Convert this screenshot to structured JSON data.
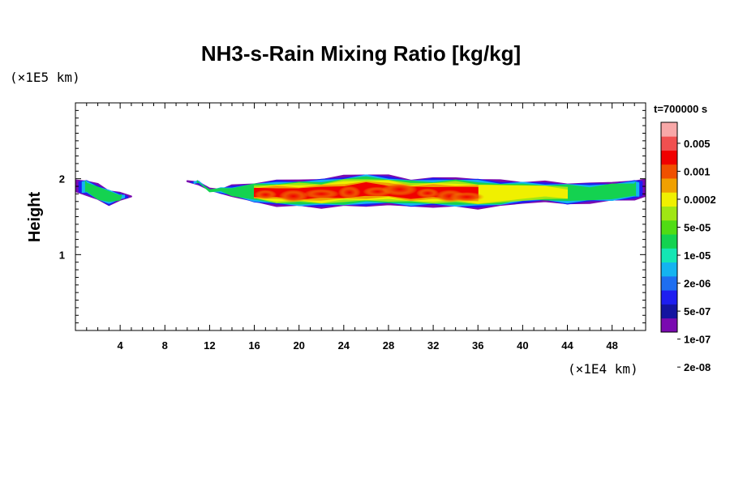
{
  "chart_data": {
    "type": "heatmap",
    "title": "NH3-s-Rain Mixing Ratio [kg/kg]",
    "ylabel": "Height",
    "y_unit": "(×1E5 km)",
    "x_unit": "(×1E4 km)",
    "time_label": "t=700000 s",
    "xlim": [
      0,
      51
    ],
    "ylim": [
      0,
      3
    ],
    "x_ticks": [
      4,
      8,
      12,
      16,
      20,
      24,
      28,
      32,
      36,
      40,
      44,
      48
    ],
    "y_ticks": [
      1,
      2
    ],
    "colorbar": {
      "labels": [
        "0.005",
        "0.001",
        "0.0002",
        "5e-05",
        "1e-05",
        "2e-06",
        "5e-07",
        "1e-07",
        "2e-08"
      ],
      "colors": [
        "#7a0ab0",
        "#1414a0",
        "#1e1ef0",
        "#1e6ef0",
        "#14b4f0",
        "#14e6b4",
        "#14d250",
        "#50dc14",
        "#a0e614",
        "#f0f000",
        "#f0a000",
        "#f05000",
        "#f00000",
        "#f05050",
        "#f8a8a8"
      ]
    },
    "cloud_profile": {
      "x": [
        0,
        1,
        2,
        3,
        4,
        5,
        10,
        11,
        12,
        13,
        14,
        16,
        18,
        20,
        22,
        24,
        26,
        28,
        30,
        32,
        34,
        36,
        38,
        40,
        42,
        44,
        46,
        48,
        50,
        51
      ],
      "top": [
        1.98,
        1.97,
        1.92,
        1.85,
        1.8,
        1.78,
        1.97,
        1.96,
        1.86,
        1.87,
        1.9,
        1.94,
        1.97,
        1.98,
        1.99,
        2.03,
        2.06,
        2.03,
        1.99,
        2.0,
        2.01,
        1.99,
        1.97,
        1.96,
        1.95,
        1.94,
        1.93,
        1.95,
        1.97,
        1.98
      ],
      "bottom": [
        1.82,
        1.8,
        1.72,
        1.66,
        1.72,
        1.76,
        1.95,
        1.94,
        1.84,
        1.82,
        1.77,
        1.7,
        1.65,
        1.64,
        1.63,
        1.64,
        1.65,
        1.66,
        1.64,
        1.64,
        1.63,
        1.62,
        1.64,
        1.69,
        1.7,
        1.67,
        1.69,
        1.71,
        1.74,
        1.76
      ]
    }
  }
}
